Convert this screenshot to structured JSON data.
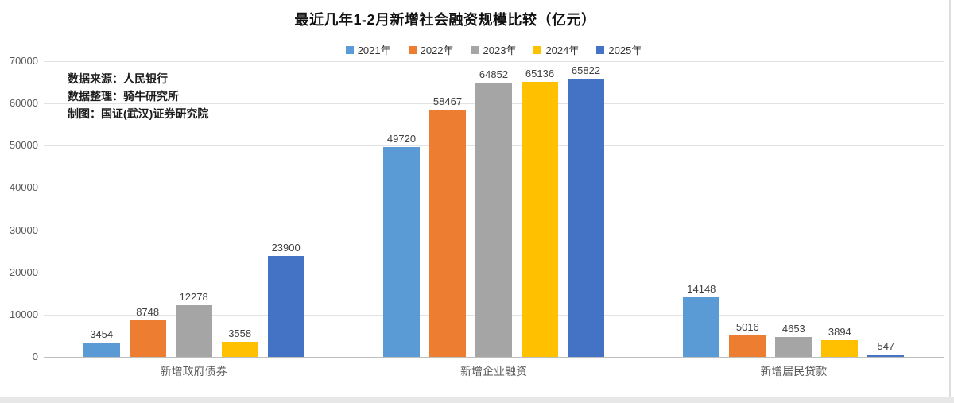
{
  "annotations": {
    "source": "数据来源：人民银行",
    "compiler": "数据整理：骑牛研究所",
    "credit": "制图：国证(武汉)证券研究院"
  },
  "chart_data": {
    "type": "bar",
    "title": "最近几年1-2月新增社会融资规模比较（亿元）",
    "categories": [
      "新增政府债券",
      "新增企业融资",
      "新增居民贷款"
    ],
    "series": [
      {
        "name": "2021年",
        "color": "#5B9BD5",
        "values": [
          3454,
          49720,
          14148
        ]
      },
      {
        "name": "2022年",
        "color": "#ED7D31",
        "values": [
          8748,
          58467,
          5016
        ]
      },
      {
        "name": "2023年",
        "color": "#A5A5A5",
        "values": [
          12278,
          64852,
          4653
        ]
      },
      {
        "name": "2024年",
        "color": "#FFC000",
        "values": [
          3558,
          65136,
          3894
        ]
      },
      {
        "name": "2025年",
        "color": "#4472C4",
        "values": [
          23900,
          65822,
          547
        ]
      }
    ],
    "ylim": [
      0,
      70000
    ],
    "yticks": [
      0,
      10000,
      20000,
      30000,
      40000,
      50000,
      60000,
      70000
    ],
    "grid": true,
    "legend_position": "top",
    "data_labels": true
  }
}
